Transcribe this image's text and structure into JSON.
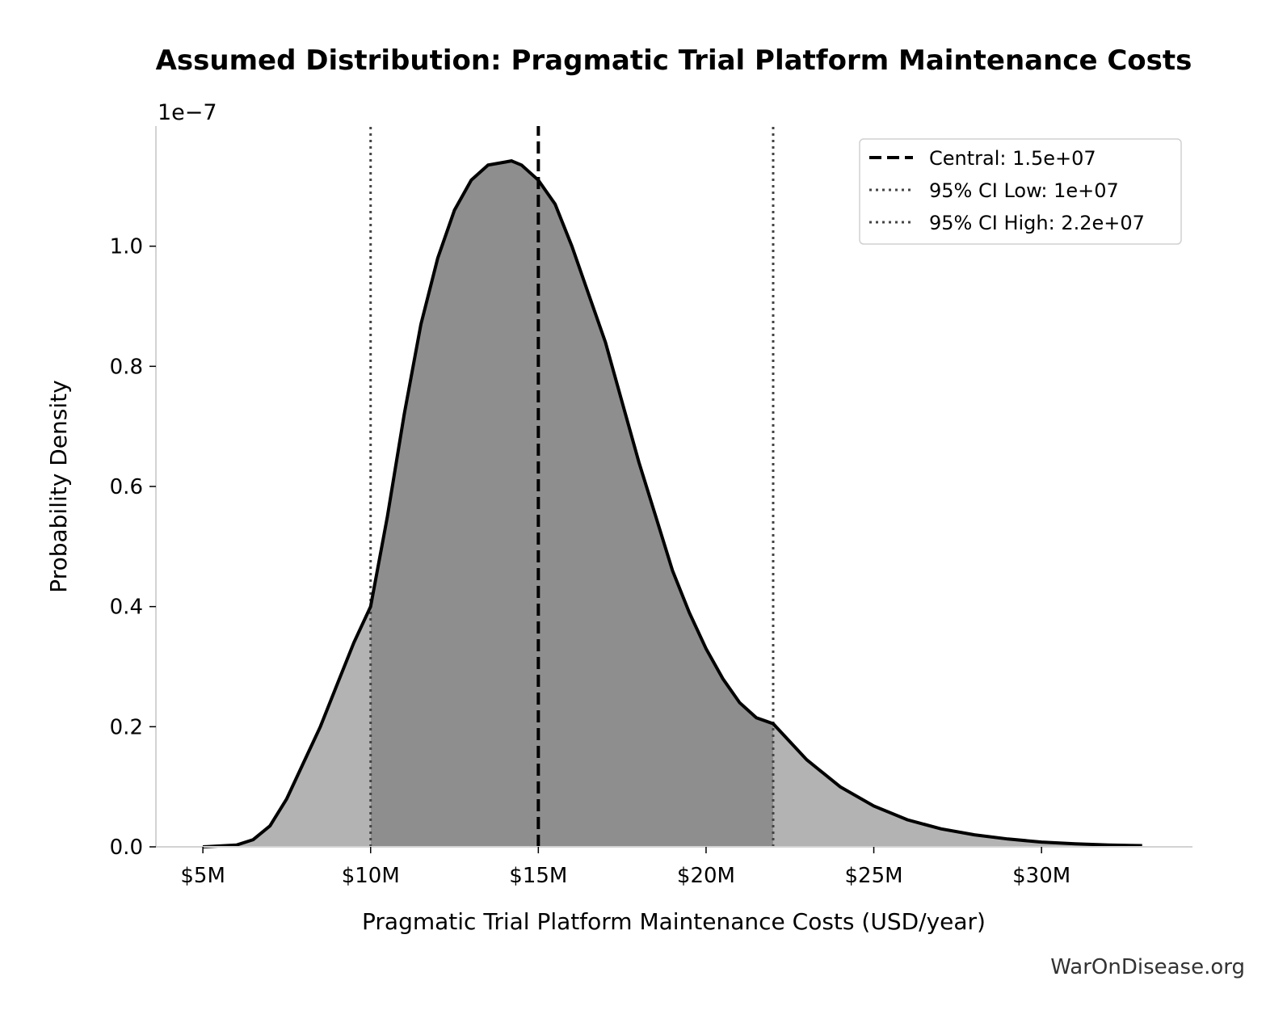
{
  "chart_data": {
    "type": "area",
    "title": "Assumed Distribution: Pragmatic Trial Platform Maintenance Costs",
    "xlabel": "Pragmatic Trial Platform Maintenance Costs (USD/year)",
    "ylabel": "Probability Density",
    "y_offset_label": "1e−7",
    "y_multiplier": 1e-07,
    "xlim": [
      3600000,
      34500000
    ],
    "ylim": [
      0,
      1.2
    ],
    "x_ticks": [
      5000000,
      10000000,
      15000000,
      20000000,
      25000000,
      30000000
    ],
    "x_tick_labels": [
      "$5M",
      "$10M",
      "$15M",
      "$20M",
      "$25M",
      "$30M"
    ],
    "y_ticks": [
      0.0,
      0.2,
      0.4,
      0.6,
      0.8,
      1.0
    ],
    "y_tick_labels": [
      "0.0",
      "0.2",
      "0.4",
      "0.6",
      "0.8",
      "1.0"
    ],
    "grid": false,
    "legend_position": "top-right",
    "series": [
      {
        "name": "",
        "x": [
          5000000,
          6000000,
          6500000,
          7000000,
          7500000,
          8000000,
          8500000,
          9000000,
          9500000,
          10000000,
          10500000,
          11000000,
          11500000,
          12000000,
          12500000,
          13000000,
          13500000,
          14000000,
          14200000,
          14500000,
          15000000,
          15500000,
          16000000,
          16500000,
          17000000,
          17500000,
          18000000,
          18500000,
          19000000,
          19500000,
          20000000,
          20500000,
          21000000,
          21500000,
          22000000,
          22500000,
          23000000,
          24000000,
          25000000,
          26000000,
          27000000,
          28000000,
          29000000,
          30000000,
          31000000,
          32000000,
          33000000
        ],
        "values": [
          0.0,
          0.003,
          0.012,
          0.035,
          0.08,
          0.14,
          0.2,
          0.27,
          0.34,
          0.4,
          0.55,
          0.72,
          0.87,
          0.98,
          1.06,
          1.11,
          1.135,
          1.14,
          1.142,
          1.135,
          1.11,
          1.07,
          1.0,
          0.92,
          0.84,
          0.74,
          0.64,
          0.55,
          0.46,
          0.39,
          0.33,
          0.28,
          0.24,
          0.215,
          0.205,
          0.175,
          0.145,
          0.1,
          0.068,
          0.045,
          0.03,
          0.02,
          0.013,
          0.008,
          0.005,
          0.003,
          0.002
        ]
      }
    ],
    "shaded_interval": [
      10000000,
      22000000
    ],
    "reference_lines": [
      {
        "label": "Central: 1.5e+07",
        "x": 15000000,
        "style": "dashed"
      },
      {
        "label": "95% CI Low: 1e+07",
        "x": 10000000,
        "style": "dotted"
      },
      {
        "label": "95% CI High: 2.2e+07",
        "x": 22000000,
        "style": "dotted"
      }
    ],
    "colors": {
      "curve": "#000000",
      "tail_fill": "#b3b3b3",
      "ci_fill": "#8e8e8e",
      "central_line": "#000000",
      "ci_line": "#444444",
      "axis": "#d3d3d3"
    }
  },
  "footer": {
    "watermark": "WarOnDisease.org"
  }
}
